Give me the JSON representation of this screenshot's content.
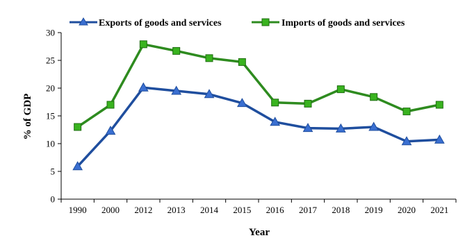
{
  "chart_data": {
    "type": "line",
    "title": "",
    "xlabel": "Year",
    "ylabel": "% of GDP",
    "categories": [
      "1990",
      "2000",
      "2012",
      "2013",
      "2014",
      "2015",
      "2016",
      "2017",
      "2018",
      "2019",
      "2020",
      "2021"
    ],
    "ylim": [
      0,
      30
    ],
    "yticks": [
      0,
      5,
      10,
      15,
      20,
      25,
      30
    ],
    "grid": false,
    "legend_position": "top",
    "series": [
      {
        "name": "Exports of goods and services",
        "color": "#1f4e9e",
        "marker": "triangle",
        "values": [
          5.9,
          12.3,
          20.1,
          19.5,
          18.9,
          17.3,
          13.9,
          12.8,
          12.7,
          13.0,
          10.4,
          10.7
        ]
      },
      {
        "name": "Imports of goods and services",
        "color": "#2e8b1f",
        "marker": "square",
        "values": [
          13.0,
          17.0,
          27.9,
          26.7,
          25.4,
          24.7,
          17.4,
          17.2,
          19.8,
          18.4,
          15.8,
          17.0
        ]
      }
    ]
  }
}
